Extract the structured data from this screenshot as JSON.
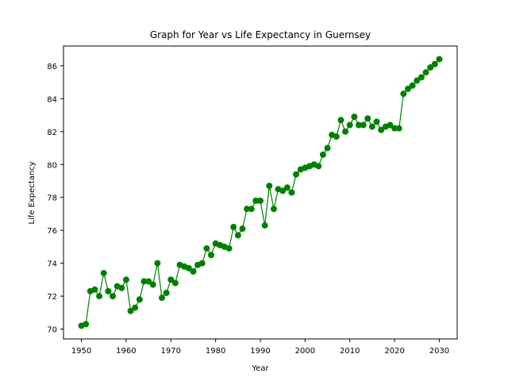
{
  "chart_data": {
    "type": "line",
    "title": "Graph for Year vs Life Expectancy in Guernsey",
    "xlabel": "Year",
    "ylabel": "Life Expectancy",
    "xlim": [
      1946.0,
      2034.0
    ],
    "ylim": [
      69.4,
      87.2
    ],
    "xticks": [
      1950,
      1960,
      1970,
      1980,
      1990,
      2000,
      2010,
      2020,
      2030
    ],
    "yticks": [
      70,
      72,
      74,
      76,
      78,
      80,
      82,
      84,
      86
    ],
    "grid": false,
    "legend": "none",
    "series": [
      {
        "color": "#008000",
        "marker": "circle",
        "x": [
          1950,
          1951,
          1952,
          1953,
          1954,
          1955,
          1956,
          1957,
          1958,
          1959,
          1960,
          1961,
          1962,
          1963,
          1964,
          1965,
          1966,
          1967,
          1968,
          1969,
          1970,
          1971,
          1972,
          1973,
          1974,
          1975,
          1976,
          1977,
          1978,
          1979,
          1980,
          1981,
          1982,
          1983,
          1984,
          1985,
          1986,
          1987,
          1988,
          1989,
          1990,
          1991,
          1992,
          1993,
          1994,
          1995,
          1996,
          1997,
          1998,
          1999,
          2000,
          2001,
          2002,
          2003,
          2004,
          2005,
          2006,
          2007,
          2008,
          2009,
          2010,
          2011,
          2012,
          2013,
          2014,
          2015,
          2016,
          2017,
          2018,
          2019,
          2020,
          2021,
          2022,
          2023,
          2024,
          2025,
          2026,
          2027,
          2028,
          2029,
          2030
        ],
        "y": [
          70.2,
          70.3,
          72.3,
          72.4,
          72.0,
          73.4,
          72.3,
          72.0,
          72.6,
          72.5,
          73.0,
          71.1,
          71.3,
          71.8,
          72.9,
          72.9,
          72.7,
          74.0,
          71.9,
          72.2,
          73.0,
          72.8,
          73.9,
          73.8,
          73.7,
          73.5,
          73.9,
          74.0,
          74.9,
          74.5,
          75.2,
          75.1,
          75.0,
          74.9,
          76.2,
          75.7,
          76.1,
          77.3,
          77.3,
          77.8,
          77.8,
          76.3,
          78.7,
          77.3,
          78.5,
          78.4,
          78.6,
          78.3,
          79.4,
          79.7,
          79.8,
          79.9,
          80.0,
          79.9,
          80.6,
          81.0,
          81.8,
          81.7,
          82.7,
          82.0,
          82.4,
          82.9,
          82.4,
          82.4,
          82.8,
          82.3,
          82.6,
          82.1,
          82.3,
          82.4,
          82.2,
          82.2,
          84.3,
          84.6,
          84.8,
          85.1,
          85.3,
          85.6,
          85.9,
          86.1,
          86.4
        ]
      }
    ]
  }
}
